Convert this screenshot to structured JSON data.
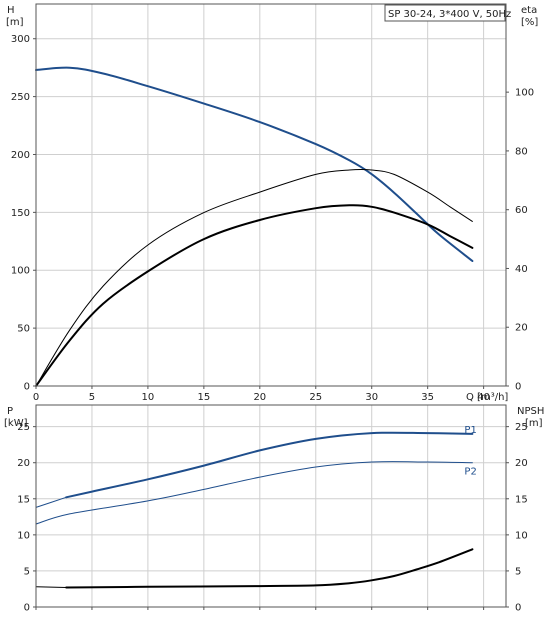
{
  "chart_data": [
    {
      "type": "line",
      "title": "SP 30-24, 3*400 V, 50Hz",
      "xlabel": "Q [m³/h]",
      "ylabel_left": [
        "H",
        "[m]"
      ],
      "ylabel_right": [
        "eta",
        "[%]"
      ],
      "xlim": [
        0,
        42
      ],
      "ylim_left": [
        0,
        330
      ],
      "ylim_right": [
        0,
        130
      ],
      "x_ticks": [
        0,
        5,
        10,
        15,
        20,
        25,
        30,
        35,
        40
      ],
      "x_tick_labels": [
        "0",
        "5",
        "10",
        "15",
        "20",
        "25",
        "30",
        "35",
        "40"
      ],
      "y_ticks_left": [
        0,
        50,
        100,
        150,
        200,
        250,
        300
      ],
      "y_tick_labels_left": [
        "0",
        "50",
        "100",
        "150",
        "200",
        "250",
        "300"
      ],
      "y_ticks_right": [
        0,
        20,
        40,
        60,
        80,
        100
      ],
      "y_tick_labels_right": [
        "0",
        "20",
        "40",
        "60",
        "80",
        "100"
      ],
      "grid": true,
      "series": [
        {
          "axis": "left",
          "color": "#1f4e8c",
          "width": 2,
          "x": [
            0,
            3,
            6,
            10,
            15,
            20,
            25,
            28,
            30,
            32,
            34,
            36,
            39
          ],
          "y": [
            273,
            275,
            270,
            259,
            244,
            228,
            209,
            195,
            183,
            167,
            149,
            131,
            108
          ]
        },
        {
          "axis": "right",
          "color": "#000000",
          "width": 1,
          "x": [
            0,
            3,
            6,
            10,
            15,
            20,
            25,
            28,
            30,
            32,
            35,
            37,
            39
          ],
          "y": [
            0,
            19,
            34,
            48,
            59,
            66,
            72,
            73.5,
            73.5,
            72,
            66,
            61,
            56
          ]
        },
        {
          "axis": "right",
          "color": "#000000",
          "width": 2,
          "x": [
            0,
            3,
            6,
            10,
            15,
            20,
            25,
            28,
            30,
            32,
            35,
            37,
            39
          ],
          "y": [
            0,
            15.5,
            28,
            39,
            50,
            56.5,
            60.5,
            61.5,
            61,
            59,
            55,
            51,
            47
          ]
        }
      ]
    },
    {
      "type": "line",
      "xlabel": "",
      "ylabel_left": [
        "P",
        "[kW]"
      ],
      "ylabel_right": [
        "NPSH",
        "[m]"
      ],
      "xlim": [
        0,
        42
      ],
      "ylim_left": [
        0,
        28
      ],
      "ylim_right": [
        0,
        28
      ],
      "x_ticks": [
        0,
        5,
        10,
        15,
        20,
        25,
        30,
        35,
        40
      ],
      "y_ticks_left": [
        0,
        5,
        10,
        15,
        20,
        25
      ],
      "y_tick_labels_left": [
        "0",
        "5",
        "10",
        "15",
        "20",
        "25"
      ],
      "y_ticks_right": [
        0,
        5,
        10,
        15,
        20,
        25
      ],
      "y_tick_labels_right": [
        "0",
        "5",
        "10",
        "15",
        "20",
        "25"
      ],
      "grid": true,
      "series": [
        {
          "name": "P1",
          "axis": "left",
          "color": "#1f4e8c",
          "width": 2,
          "x": [
            2.7,
            5,
            10,
            15,
            20,
            25,
            30,
            35,
            39
          ],
          "y": [
            15.2,
            16.0,
            17.7,
            19.6,
            21.7,
            23.3,
            24.1,
            24.1,
            24.0
          ]
        },
        {
          "axis": "left",
          "color": "#1f4e8c",
          "width": 1,
          "x": [
            0,
            2.7
          ],
          "y": [
            13.8,
            15.2
          ]
        },
        {
          "name": "P2",
          "axis": "left",
          "color": "#1f4e8c",
          "width": 1,
          "x": [
            0,
            3,
            10,
            15,
            20,
            25,
            30,
            35,
            39
          ],
          "y": [
            11.5,
            12.9,
            14.7,
            16.3,
            18.0,
            19.4,
            20.1,
            20.1,
            20.0
          ]
        },
        {
          "axis": "right",
          "color": "#000000",
          "width": 2,
          "x": [
            2.7,
            10,
            20,
            25,
            28,
            30,
            32,
            34,
            36,
            39
          ],
          "y": [
            2.7,
            2.8,
            2.9,
            3.0,
            3.3,
            3.7,
            4.3,
            5.2,
            6.2,
            8.0
          ]
        },
        {
          "axis": "right",
          "color": "#000000",
          "width": 1,
          "x": [
            0,
            2.7
          ],
          "y": [
            2.8,
            2.7
          ]
        }
      ]
    }
  ]
}
